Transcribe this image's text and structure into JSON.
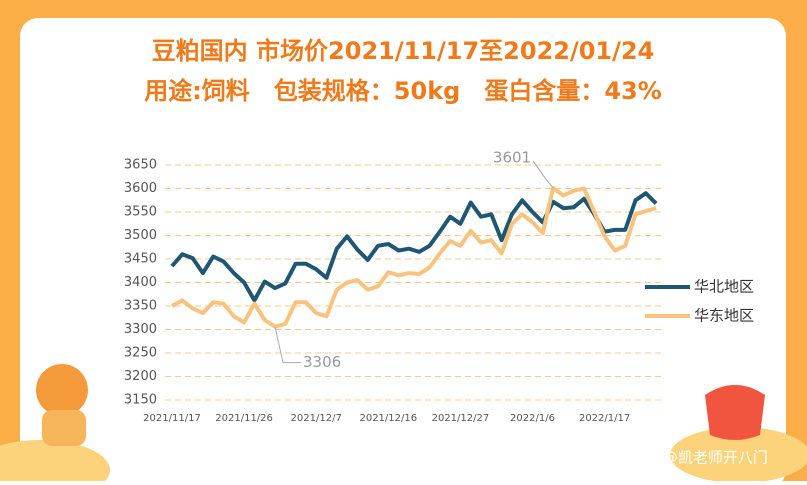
{
  "chart_data": {
    "type": "line",
    "title": "豆粕国内 市场价2021/11/17至2022/01/24",
    "subtitle": "用途:饲料　包装规格：50kg　蛋白含量：43%",
    "watermark": "头条 @凯老师开八门",
    "categories": [
      "2021/11/17",
      null,
      null,
      null,
      null,
      null,
      null,
      "2021/11/26",
      null,
      null,
      null,
      null,
      null,
      null,
      "2021/12/7",
      null,
      null,
      null,
      null,
      null,
      null,
      "2021/12/16",
      null,
      null,
      null,
      null,
      null,
      null,
      "2021/12/27",
      null,
      null,
      null,
      null,
      null,
      null,
      "2022/1/6",
      null,
      null,
      null,
      null,
      null,
      null,
      "2022/1/17",
      null,
      null,
      null,
      null,
      null
    ],
    "series": [
      {
        "name": "华北地区",
        "color": "#1f5673",
        "values": [
          3435,
          3460,
          3452,
          3420,
          3455,
          3445,
          3420,
          3400,
          3362,
          3402,
          3388,
          3398,
          3440,
          3440,
          3428,
          3410,
          3472,
          3498,
          3470,
          3448,
          3478,
          3482,
          3468,
          3472,
          3465,
          3478,
          3508,
          3540,
          3525,
          3570,
          3540,
          3545,
          3490,
          3545,
          3575,
          3550,
          3528,
          3572,
          3558,
          3560,
          3578,
          3545,
          3508,
          3512,
          3512,
          3575,
          3590,
          3568
        ]
      },
      {
        "name": "华东地区",
        "color": "#f9c27f",
        "label_extremes": true,
        "values": [
          3350,
          3362,
          3345,
          3335,
          3358,
          3355,
          3328,
          3315,
          3355,
          3320,
          3306,
          3312,
          3358,
          3358,
          3335,
          3328,
          3385,
          3400,
          3405,
          3385,
          3392,
          3422,
          3415,
          3420,
          3418,
          3432,
          3462,
          3488,
          3478,
          3510,
          3485,
          3490,
          3462,
          3525,
          3545,
          3528,
          3505,
          3601,
          3585,
          3595,
          3600,
          3550,
          3498,
          3468,
          3478,
          3545,
          3552,
          3558
        ]
      }
    ],
    "ylim": [
      3150,
      3650
    ],
    "yticks": [
      3150,
      3200,
      3250,
      3300,
      3350,
      3400,
      3450,
      3500,
      3550,
      3600,
      3650
    ],
    "grid": true
  }
}
